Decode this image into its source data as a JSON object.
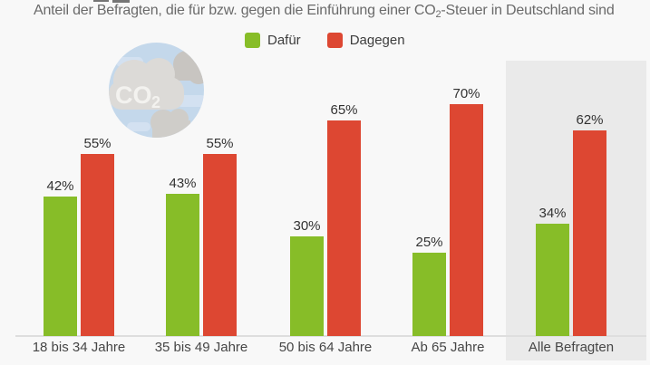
{
  "title": {
    "prefix": "Anteil der Befragten, die für bzw. gegen die Einführung einer CO",
    "subscript": "2",
    "suffix": "-Steuer in Deutschland sind"
  },
  "legend": [
    {
      "label": "Dafür",
      "color": "#87bd28"
    },
    {
      "label": "Dagegen",
      "color": "#dd4732"
    }
  ],
  "badge": {
    "text_main": "CO",
    "text_sub": "2",
    "description": "co2-cloud-badge"
  },
  "colors": {
    "background": "#f8f8f8",
    "highlight_panel": "#eaeaea",
    "axis_line": "#dedede",
    "dafur_green": "#87bd28",
    "dagegen_red": "#dd4732"
  },
  "chart_data": {
    "type": "bar",
    "title": "Anteil der Befragten, die für bzw. gegen die Einführung einer CO2-Steuer in Deutschland sind",
    "categories": [
      "18 bis 34 Jahre",
      "35 bis 49 Jahre",
      "50 bis 64 Jahre",
      "Ab 65 Jahre",
      "Alle Befragten"
    ],
    "series": [
      {
        "name": "Dafür",
        "color": "#87bd28",
        "values": [
          42,
          43,
          30,
          25,
          34
        ]
      },
      {
        "name": "Dagegen",
        "color": "#dd4732",
        "values": [
          55,
          55,
          65,
          70,
          62
        ]
      }
    ],
    "value_suffix": "%",
    "xlabel": "",
    "ylabel": "",
    "ylim": [
      0,
      100
    ],
    "grid": false,
    "legend_position": "top",
    "data_labels": true,
    "highlighted_category": "Alle Befragten"
  }
}
